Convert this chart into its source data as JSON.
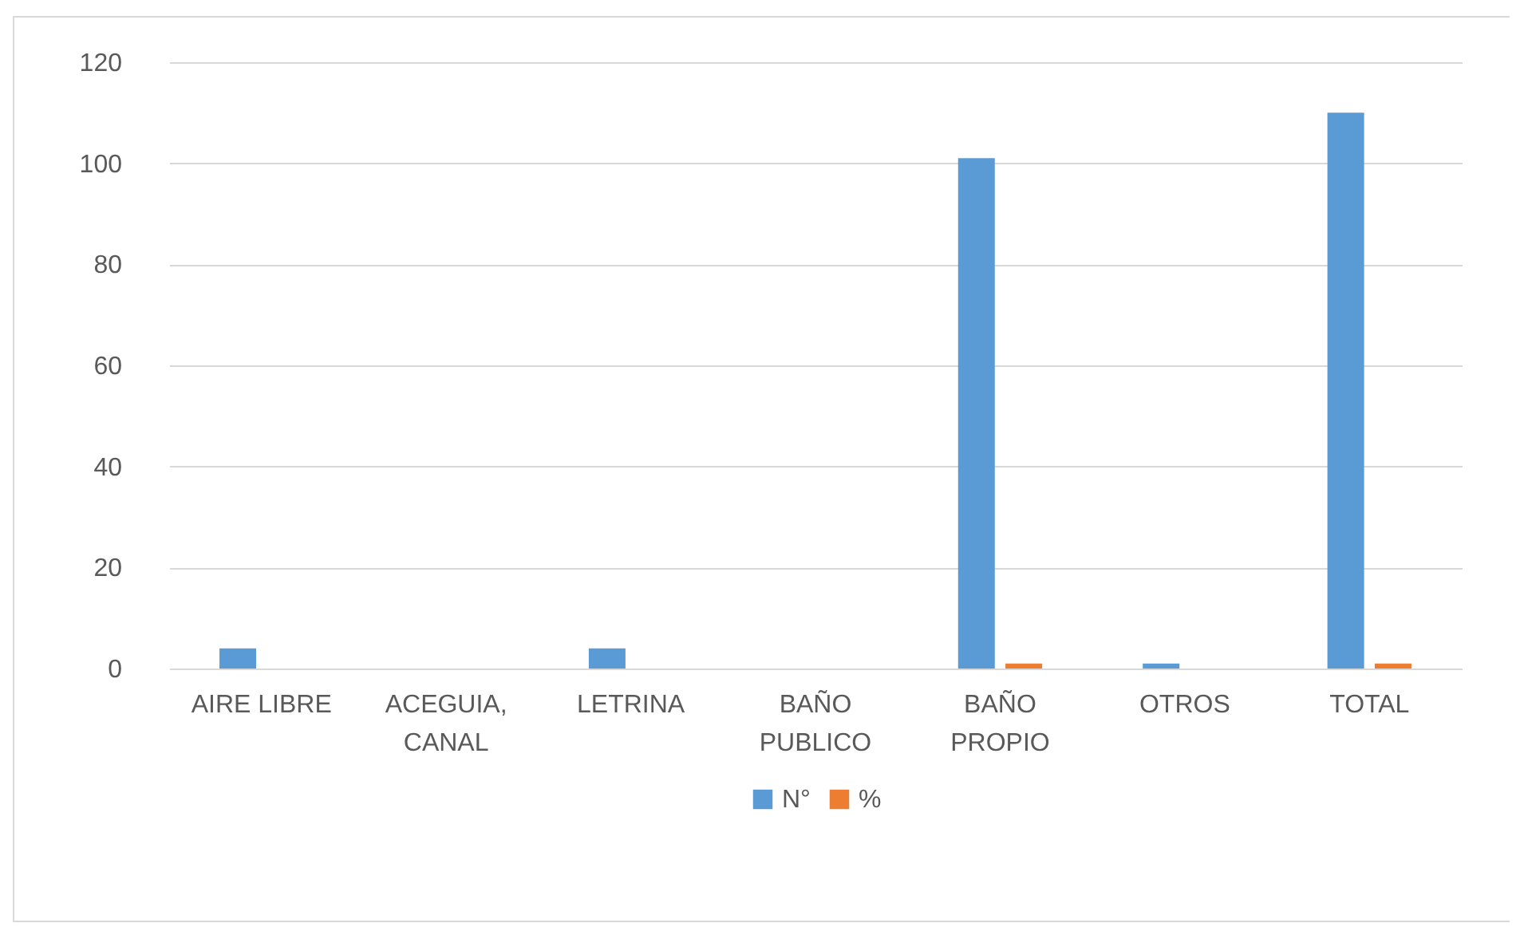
{
  "chart_data": {
    "type": "bar",
    "categories": [
      "AIRE LIBRE",
      "ACEGUIA, CANAL",
      "LETRINA",
      "BAÑO PUBLICO",
      "BAÑO PROPIO",
      "OTROS",
      "TOTAL"
    ],
    "series": [
      {
        "name": "N°",
        "color": "#5b9bd5",
        "values": [
          4,
          0,
          4,
          0,
          101,
          1,
          110
        ]
      },
      {
        "name": "%",
        "color": "#ed7d31",
        "values": [
          0,
          0,
          0,
          0,
          1,
          0,
          1
        ]
      }
    ],
    "ylim": [
      0,
      120
    ],
    "yticks": [
      0,
      20,
      40,
      60,
      80,
      100,
      120
    ],
    "grid": "y",
    "legend": "bottom"
  }
}
